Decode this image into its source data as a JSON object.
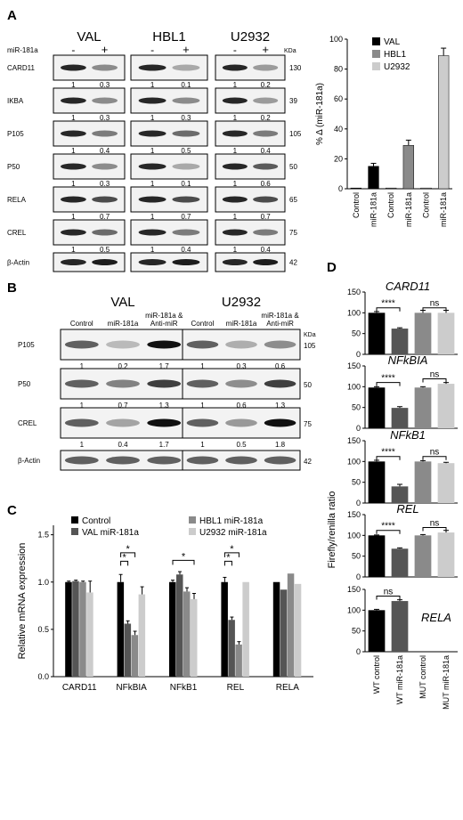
{
  "panel_a": {
    "letter": "A",
    "groups": [
      "VAL",
      "HBL1",
      "U2932"
    ],
    "mir_label": "miR-181a",
    "minus": "-",
    "plus": "+",
    "kda": "KDa",
    "rows": [
      {
        "name": "CARD11",
        "kda": "130",
        "vals": [
          [
            "1",
            "0.3"
          ],
          [
            "1",
            "0.1"
          ],
          [
            "1",
            "0.2"
          ]
        ]
      },
      {
        "name": "IKBA",
        "kda": "39",
        "vals": [
          [
            "1",
            "0.3"
          ],
          [
            "1",
            "0.3"
          ],
          [
            "1",
            "0.2"
          ]
        ]
      },
      {
        "name": "P105",
        "kda": "105",
        "vals": [
          [
            "1",
            "0.4"
          ],
          [
            "1",
            "0.5"
          ],
          [
            "1",
            "0.4"
          ]
        ]
      },
      {
        "name": "P50",
        "kda": "50",
        "vals": [
          [
            "1",
            "0.3"
          ],
          [
            "1",
            "0.1"
          ],
          [
            "1",
            "0.6"
          ]
        ]
      },
      {
        "name": "RELA",
        "kda": "65",
        "vals": [
          [
            "1",
            "0.7"
          ],
          [
            "1",
            "0.7"
          ],
          [
            "1",
            "0.7"
          ]
        ]
      },
      {
        "name": "CREL",
        "kda": "75",
        "vals": [
          [
            "1",
            "0.5"
          ],
          [
            "1",
            "0.4"
          ],
          [
            "1",
            "0.4"
          ]
        ]
      },
      {
        "name": "β-Actin",
        "kda": "42",
        "vals": null
      }
    ]
  },
  "panel_b": {
    "letter": "B",
    "groups": [
      "VAL",
      "U2932"
    ],
    "lanes": [
      "Control",
      "miR-181a",
      "miR-181a &",
      "Anti-miR"
    ],
    "kda": "KDa",
    "rows": [
      {
        "name": "P105",
        "kda": "105",
        "vals": [
          [
            "1",
            "0.2",
            "1.7"
          ],
          [
            "1",
            "0.3",
            "0.6"
          ]
        ]
      },
      {
        "name": "P50",
        "kda": "50",
        "vals": [
          [
            "1",
            "0.7",
            "1.3"
          ],
          [
            "1",
            "0.6",
            "1.3"
          ]
        ]
      },
      {
        "name": "CREL",
        "kda": "75",
        "vals": [
          [
            "1",
            "0.4",
            "1.7"
          ],
          [
            "1",
            "0.5",
            "1.8"
          ]
        ]
      },
      {
        "name": "β-Actin",
        "kda": "42",
        "vals": null
      }
    ]
  },
  "panel_c_letter": "C",
  "panel_d_letter": "D",
  "colors": {
    "black": "#000000",
    "dark_gray": "#555555",
    "mid_gray": "#8a8a8a",
    "light_gray": "#cccccc"
  },
  "chart_data": [
    {
      "id": "A_bar",
      "type": "bar",
      "ylabel": "% Δ (miR-181a)",
      "ylim": [
        0,
        100
      ],
      "yticks": [
        0,
        20,
        40,
        60,
        80,
        100
      ],
      "categories": [
        "Control",
        "miR-181a",
        "Control",
        "miR-181a",
        "Control",
        "miR-181a"
      ],
      "values": [
        0.5,
        15,
        0.5,
        29,
        0.5,
        89
      ],
      "errors": [
        0,
        2,
        0,
        3.5,
        0,
        5
      ],
      "bar_series": [
        0,
        0,
        1,
        1,
        2,
        2
      ],
      "legend": [
        "VAL",
        "HBL1",
        "U2932"
      ],
      "legend_position": "top-right"
    },
    {
      "id": "C_bar",
      "type": "bar",
      "ylabel": "Relative mRNA expression",
      "ylim": [
        0,
        1.6
      ],
      "yticks": [
        0.0,
        0.5,
        1.0,
        1.5
      ],
      "categories": [
        "CARD11",
        "NFkBIA",
        "NFkB1",
        "REL",
        "RELA"
      ],
      "series": [
        {
          "name": "Control",
          "values": [
            1.0,
            1.0,
            1.0,
            1.0,
            1.0
          ],
          "errors": [
            0.01,
            0.08,
            0.02,
            0.05,
            0
          ]
        },
        {
          "name": "VAL miR-181a",
          "values": [
            1.01,
            0.56,
            1.08,
            0.6,
            0.92
          ],
          "errors": [
            0.01,
            0.03,
            0.03,
            0.03,
            0
          ]
        },
        {
          "name": "HBL1 miR-181a",
          "values": [
            1.0,
            0.44,
            0.9,
            0.34,
            1.09
          ],
          "errors": [
            0.01,
            0.04,
            0.04,
            0.03,
            0
          ]
        },
        {
          "name": "U2932 miR-181a",
          "values": [
            0.89,
            0.87,
            0.82,
            1.0,
            0.98
          ],
          "errors": [
            0.12,
            0.08,
            0.06,
            0,
            0
          ]
        }
      ],
      "significance": [
        {
          "category": "NFkBIA",
          "label": "*"
        },
        {
          "category": "NFkBIA",
          "label": "*"
        },
        {
          "category": "NFkB1",
          "label": "*"
        },
        {
          "category": "REL",
          "label": "*"
        },
        {
          "category": "REL",
          "label": "*"
        }
      ],
      "legend_position": "top"
    },
    {
      "id": "D_bar",
      "type": "bar",
      "ylabel": "Firefly/renilla ratio",
      "ylim": [
        0,
        150
      ],
      "yticks": [
        0,
        50,
        100,
        150
      ],
      "categories": [
        "WT control",
        "WT miR-181a",
        "MUT control",
        "MUT miR-181a"
      ],
      "panels": [
        {
          "gene": "CARD11",
          "values": [
            100,
            62,
            100,
            100
          ],
          "errors": [
            3,
            2,
            6,
            6
          ],
          "sig": [
            "****",
            "ns"
          ]
        },
        {
          "gene": "NFkBIA",
          "values": [
            98,
            49,
            98,
            107
          ],
          "errors": [
            2,
            3,
            2,
            3
          ],
          "sig": [
            "****",
            "ns"
          ]
        },
        {
          "gene": "NFkB1",
          "values": [
            100,
            40,
            100,
            96
          ],
          "errors": [
            3,
            5,
            2,
            2
          ],
          "sig": [
            "****",
            "ns"
          ]
        },
        {
          "gene": "REL",
          "values": [
            100,
            68,
            100,
            107
          ],
          "errors": [
            1,
            2,
            2,
            5
          ],
          "sig": [
            "****",
            "ns"
          ]
        },
        {
          "gene": "RELA",
          "values": [
            100,
            122,
            null,
            null
          ],
          "errors": [
            2,
            3,
            0,
            0
          ],
          "sig": [
            "ns"
          ]
        }
      ]
    }
  ]
}
